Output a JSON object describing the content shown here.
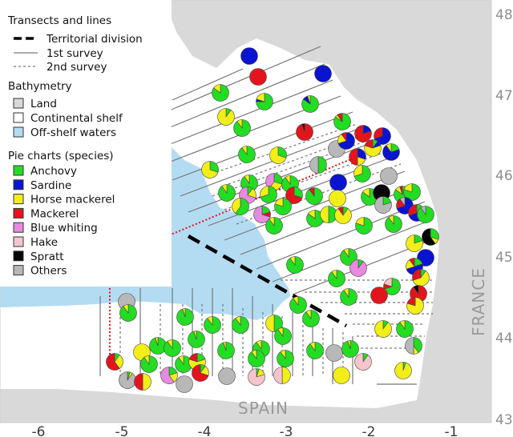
{
  "axes": {
    "lon_ticks": [
      "-6",
      "-5",
      "-4",
      "-3",
      "-2",
      "-1"
    ],
    "lat_ticks": [
      "48",
      "47",
      "46",
      "45",
      "44",
      "43"
    ]
  },
  "labels": {
    "country_east": "FRANCE",
    "country_south": "SPAIN"
  },
  "legend": {
    "transects_title": "Transects and lines",
    "transects": [
      {
        "label": "Territorial division",
        "style": "thick-dash"
      },
      {
        "label": "1st survey",
        "style": "solid"
      },
      {
        "label": "2nd survey",
        "style": "dashed"
      }
    ],
    "bathymetry_title": "Bathymetry",
    "bathymetry": [
      {
        "label": "Land",
        "color": "#d9d9d9"
      },
      {
        "label": "Continental shelf",
        "color": "#ffffff"
      },
      {
        "label": "Off-shelf waters",
        "color": "#b3dcf2"
      }
    ],
    "species_title": "Pie charts (species)",
    "species": [
      {
        "label": "Anchovy",
        "color": "#22dd22"
      },
      {
        "label": "Sardine",
        "color": "#0a14d0"
      },
      {
        "label": "Horse mackerel",
        "color": "#f2ee18"
      },
      {
        "label": "Mackerel",
        "color": "#e4141c"
      },
      {
        "label": "Blue whiting",
        "color": "#e88ae0"
      },
      {
        "label": "Hake",
        "color": "#f6c4cc"
      },
      {
        "label": "Spratt",
        "color": "#050505"
      },
      {
        "label": "Others",
        "color": "#b8b8b8"
      }
    ]
  }
}
